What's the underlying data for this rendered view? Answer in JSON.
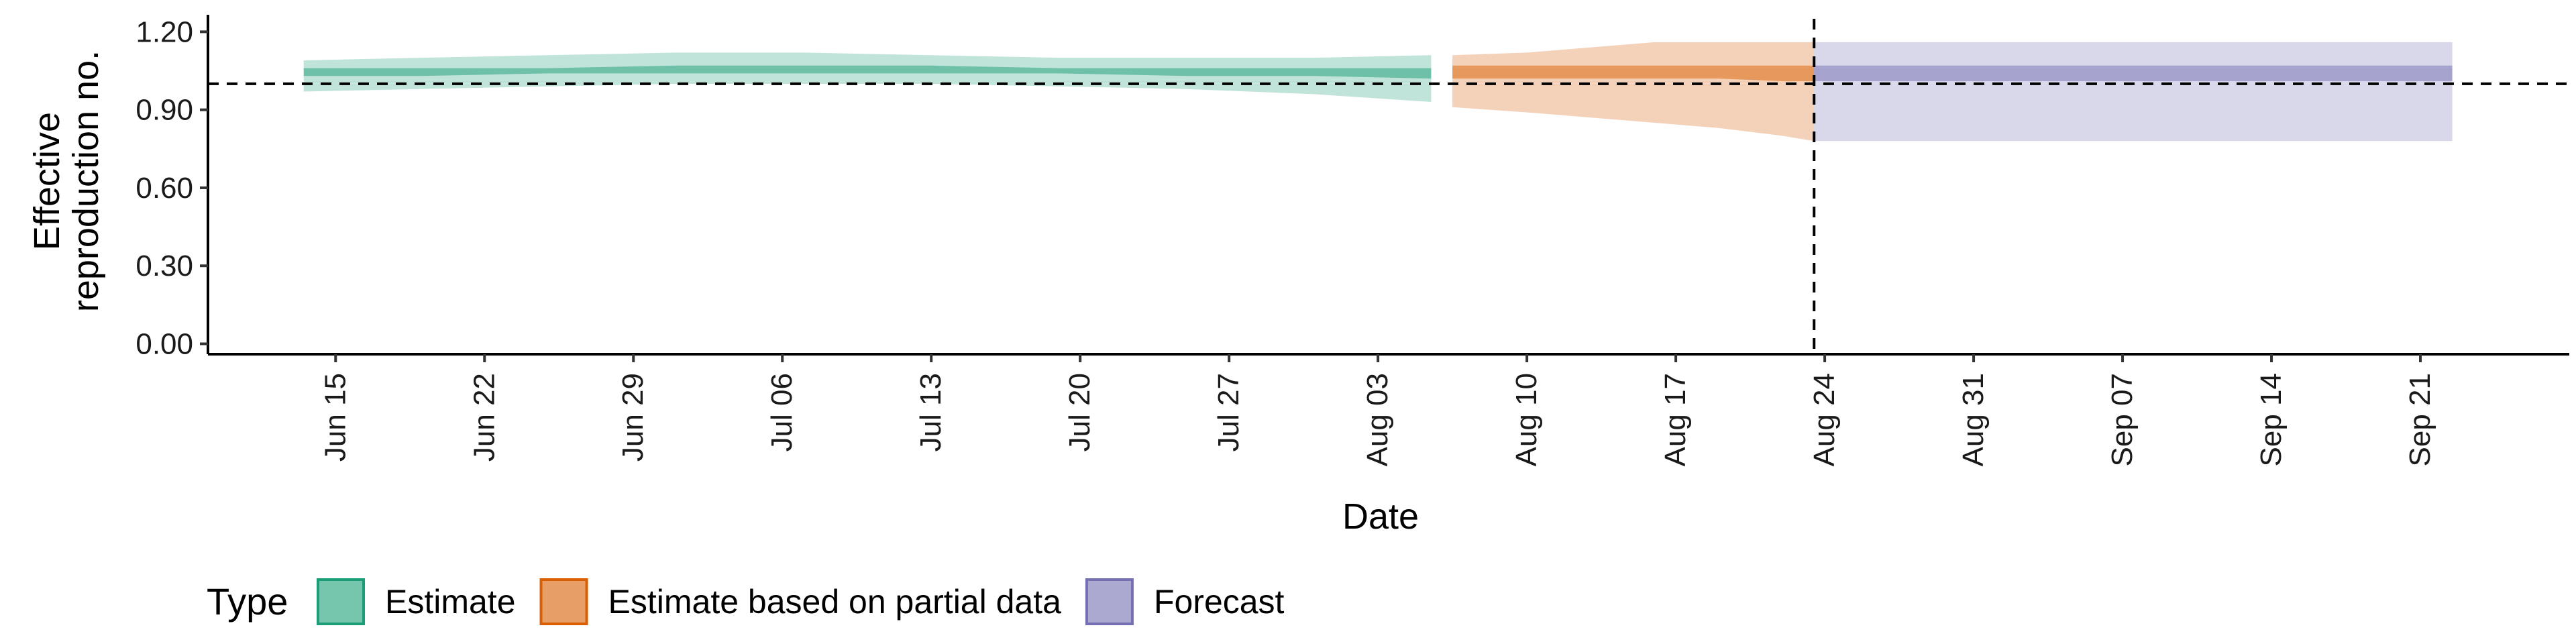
{
  "chart_data": {
    "type": "area",
    "xlabel": "Date",
    "ylabel_lines": [
      "Effective",
      "reproduction no."
    ],
    "ylim": [
      -0.04,
      1.25
    ],
    "y_ticks": [
      0.0,
      0.3,
      0.6,
      0.9,
      1.2
    ],
    "y_tick_labels": [
      "0.00",
      "0.30",
      "0.60",
      "0.90",
      "1.20"
    ],
    "x_range": [
      "2020-06-09",
      "2020-09-28"
    ],
    "x_ticks": [
      "2020-06-15",
      "2020-06-22",
      "2020-06-29",
      "2020-07-06",
      "2020-07-13",
      "2020-07-20",
      "2020-07-27",
      "2020-08-03",
      "2020-08-10",
      "2020-08-17",
      "2020-08-24",
      "2020-08-31",
      "2020-09-07",
      "2020-09-14",
      "2020-09-21"
    ],
    "x_tick_labels": [
      "Jun 15",
      "Jun 22",
      "Jun 29",
      "Jul 06",
      "Jul 13",
      "Jul 20",
      "Jul 27",
      "Aug 03",
      "Aug 10",
      "Aug 17",
      "Aug 24",
      "Aug 31",
      "Sep 07",
      "Sep 14",
      "Sep 21"
    ],
    "reference_hline": 1.0,
    "reference_vline": "2020-08-23",
    "legend": {
      "title": "Type",
      "position": "bottom-left",
      "items": [
        {
          "label": "Estimate",
          "color": "#1B9E77"
        },
        {
          "label": "Estimate based on partial data",
          "color": "#D95F02"
        },
        {
          "label": "Forecast",
          "color": "#7570B3"
        }
      ]
    },
    "series": [
      {
        "name": "Estimate",
        "color": "#1B9E77",
        "points": [
          {
            "x": "2020-06-14",
            "lo90": 0.97,
            "hi90": 1.09,
            "lo50": 1.03,
            "hi50": 1.06
          },
          {
            "x": "2020-06-19",
            "lo90": 0.98,
            "hi90": 1.1,
            "lo50": 1.03,
            "hi50": 1.06
          },
          {
            "x": "2020-06-25",
            "lo90": 0.99,
            "hi90": 1.11,
            "lo50": 1.04,
            "hi50": 1.06
          },
          {
            "x": "2020-07-01",
            "lo90": 1.0,
            "hi90": 1.12,
            "lo50": 1.04,
            "hi50": 1.07
          },
          {
            "x": "2020-07-07",
            "lo90": 1.0,
            "hi90": 1.12,
            "lo50": 1.04,
            "hi50": 1.07
          },
          {
            "x": "2020-07-13",
            "lo90": 1.0,
            "hi90": 1.11,
            "lo50": 1.04,
            "hi50": 1.07
          },
          {
            "x": "2020-07-19",
            "lo90": 0.99,
            "hi90": 1.1,
            "lo50": 1.04,
            "hi50": 1.06
          },
          {
            "x": "2020-07-25",
            "lo90": 0.98,
            "hi90": 1.1,
            "lo50": 1.03,
            "hi50": 1.06
          },
          {
            "x": "2020-07-31",
            "lo90": 0.96,
            "hi90": 1.1,
            "lo50": 1.03,
            "hi50": 1.06
          },
          {
            "x": "2020-08-05",
            "lo90": 0.93,
            "hi90": 1.11,
            "lo50": 1.02,
            "hi50": 1.06
          }
        ]
      },
      {
        "name": "Estimate based on partial data",
        "color": "#D95F02",
        "points": [
          {
            "x": "2020-08-07",
            "lo90": 0.91,
            "hi90": 1.11,
            "lo50": 1.02,
            "hi50": 1.07
          },
          {
            "x": "2020-08-10",
            "lo90": 0.89,
            "hi90": 1.12,
            "lo50": 1.02,
            "hi50": 1.07
          },
          {
            "x": "2020-08-13",
            "lo90": 0.87,
            "hi90": 1.14,
            "lo50": 1.02,
            "hi50": 1.07
          },
          {
            "x": "2020-08-16",
            "lo90": 0.85,
            "hi90": 1.16,
            "lo50": 1.02,
            "hi50": 1.07
          },
          {
            "x": "2020-08-19",
            "lo90": 0.83,
            "hi90": 1.16,
            "lo50": 1.02,
            "hi50": 1.07
          },
          {
            "x": "2020-08-22",
            "lo90": 0.8,
            "hi90": 1.16,
            "lo50": 1.01,
            "hi50": 1.07
          },
          {
            "x": "2020-08-23",
            "lo90": 0.78,
            "hi90": 1.16,
            "lo50": 1.01,
            "hi50": 1.07
          }
        ]
      },
      {
        "name": "Forecast",
        "color": "#7570B3",
        "points": [
          {
            "x": "2020-08-24",
            "lo90": 0.78,
            "hi90": 1.16,
            "lo50": 1.01,
            "hi50": 1.07
          },
          {
            "x": "2020-09-22",
            "lo90": 0.78,
            "hi90": 1.16,
            "lo50": 1.01,
            "hi50": 1.07
          }
        ]
      }
    ]
  }
}
